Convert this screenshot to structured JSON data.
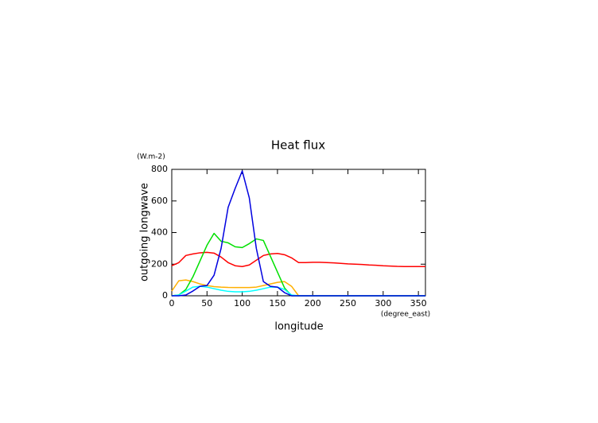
{
  "chart_data": {
    "type": "line",
    "title": "Heat flux",
    "y_label": "outgoing longwave",
    "y_units": "(W.m-2)",
    "x_label": "longitude",
    "x_units": "(degree_east)",
    "x": [
      0,
      10,
      20,
      30,
      40,
      50,
      60,
      70,
      80,
      90,
      100,
      110,
      120,
      130,
      140,
      150,
      160,
      170,
      180,
      190,
      200,
      210,
      220,
      230,
      240,
      250,
      260,
      270,
      280,
      290,
      300,
      310,
      320,
      330,
      340,
      350,
      360
    ],
    "series": [
      {
        "color": "#ff0000",
        "values": [
          190,
          210,
          255,
          265,
          272,
          275,
          270,
          245,
          210,
          190,
          185,
          195,
          225,
          255,
          265,
          268,
          260,
          240,
          210,
          210,
          212,
          212,
          210,
          208,
          205,
          202,
          200,
          198,
          195,
          193,
          190,
          188,
          186,
          185,
          185,
          185,
          185
        ]
      },
      {
        "color": "#ffb000",
        "values": [
          30,
          95,
          100,
          90,
          75,
          65,
          58,
          55,
          53,
          52,
          52,
          52,
          55,
          65,
          75,
          85,
          90,
          60,
          0,
          0,
          0,
          0,
          0,
          0,
          0,
          0,
          0,
          0,
          0,
          0,
          0,
          0,
          0,
          0,
          0,
          0,
          0
        ]
      },
      {
        "color": "#00e000",
        "values": [
          0,
          5,
          40,
          120,
          220,
          320,
          395,
          345,
          335,
          310,
          305,
          330,
          360,
          350,
          250,
          150,
          50,
          0,
          0,
          0,
          0,
          0,
          0,
          0,
          0,
          0,
          0,
          0,
          0,
          0,
          0,
          0,
          0,
          0,
          0,
          0,
          0
        ]
      },
      {
        "color": "#00ffff",
        "values": [
          0,
          5,
          30,
          55,
          60,
          55,
          45,
          35,
          28,
          25,
          25,
          28,
          35,
          45,
          55,
          55,
          40,
          5,
          0,
          0,
          0,
          0,
          0,
          0,
          0,
          0,
          0,
          0,
          0,
          0,
          0,
          0,
          0,
          0,
          0,
          0,
          0
        ]
      },
      {
        "color": "#0000e0",
        "values": [
          0,
          0,
          5,
          30,
          60,
          65,
          130,
          300,
          560,
          680,
          790,
          620,
          300,
          90,
          60,
          55,
          20,
          0,
          0,
          0,
          0,
          0,
          0,
          0,
          0,
          0,
          0,
          0,
          0,
          0,
          0,
          0,
          0,
          0,
          0,
          0,
          0
        ]
      }
    ],
    "xlim": [
      0,
      360
    ],
    "xticks": [
      0,
      50,
      100,
      150,
      200,
      250,
      300,
      350
    ],
    "ylim": [
      0,
      800
    ],
    "yticks": [
      0,
      200,
      400,
      600,
      800
    ]
  }
}
